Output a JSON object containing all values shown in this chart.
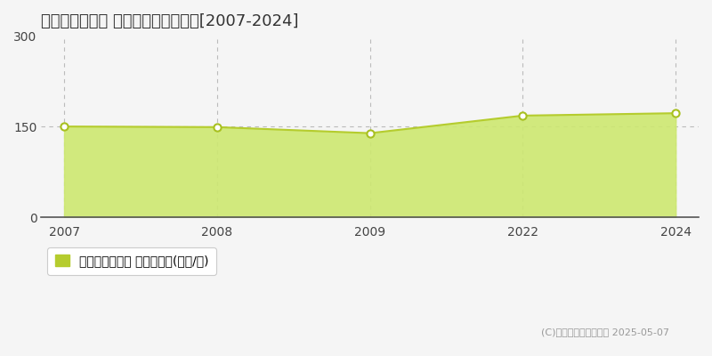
{
  "title": "江戸川区その他 マンション価格推移[2007-2024]",
  "x_labels": [
    "2007",
    "2008",
    "2009",
    "2022",
    "2024"
  ],
  "y_values": [
    150,
    149,
    139,
    168,
    172
  ],
  "line_color": "#b5cc2e",
  "fill_color": "#cde870",
  "fill_alpha": 0.9,
  "marker_color": "white",
  "marker_edge_color": "#a8c020",
  "ylim": [
    0,
    300
  ],
  "yticks": [
    0,
    150,
    300
  ],
  "grid_color": "#bbbbbb",
  "grid_style": "--",
  "bg_color": "#f5f5f5",
  "plot_bg_color": "#f5f5f5",
  "legend_label": "マンション価格 平均坪単価(万円/坪)",
  "legend_marker_color": "#b5cc2e",
  "copyright_text": "(C)土地価格ドットコム 2025-05-07",
  "title_fontsize": 13,
  "tick_fontsize": 10,
  "legend_fontsize": 10,
  "copyright_fontsize": 8
}
